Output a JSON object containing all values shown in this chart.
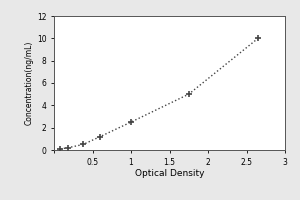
{
  "x_values": [
    0.08,
    0.18,
    0.38,
    0.6,
    1.0,
    1.75,
    2.65
  ],
  "y_values": [
    0.1,
    0.2,
    0.5,
    1.2,
    2.5,
    5.0,
    10.0
  ],
  "xlabel": "Optical Density",
  "ylabel": "Concentration(ng/mL)",
  "xlim": [
    0,
    3
  ],
  "ylim": [
    0,
    12
  ],
  "xticks": [
    0,
    0.5,
    1.0,
    1.5,
    2.0,
    2.5,
    3.0
  ],
  "yticks": [
    0,
    2,
    4,
    6,
    8,
    10,
    12
  ],
  "line_color": "#444444",
  "marker_color": "#444444",
  "background_color": "#ffffff",
  "fig_bg_color": "#e8e8e8",
  "line_style": "dotted",
  "marker_style": "+"
}
